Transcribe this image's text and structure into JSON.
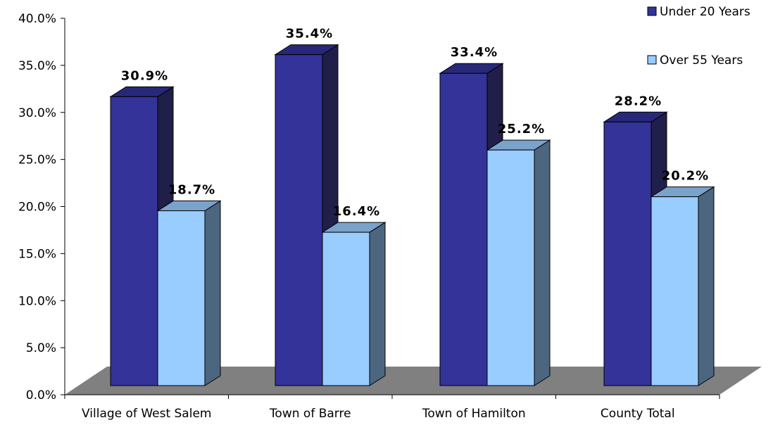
{
  "chart_data": {
    "type": "bar",
    "categories": [
      "Village of West Salem",
      "Town of Barre",
      "Town of Hamilton",
      "County Total"
    ],
    "series": [
      {
        "name": "Under 20 Years",
        "values": [
          30.9,
          35.4,
          33.4,
          28.2
        ],
        "labels": [
          "30.9%",
          "35.4%",
          "33.4%",
          "28.2%"
        ]
      },
      {
        "name": "Over 55 Years",
        "values": [
          18.7,
          16.4,
          25.2,
          20.2
        ],
        "labels": [
          "18.7%",
          "16.4%",
          "25.2%",
          "20.2%"
        ]
      }
    ],
    "ylim": [
      0,
      40
    ],
    "yticks": [
      "0.0%",
      "5.0%",
      "10.0%",
      "15.0%",
      "20.0%",
      "25.0%",
      "30.0%",
      "35.0%",
      "40.0%"
    ],
    "legend_position": "top-right",
    "three_d": true,
    "colors": {
      "series0_front": "#333399",
      "series0_top": "#28287a",
      "series0_side": "#1f1f4a",
      "series1_front": "#99ccff",
      "series1_top": "#7aa3cc",
      "series1_side": "#4d6680",
      "floor": "#808080"
    }
  }
}
